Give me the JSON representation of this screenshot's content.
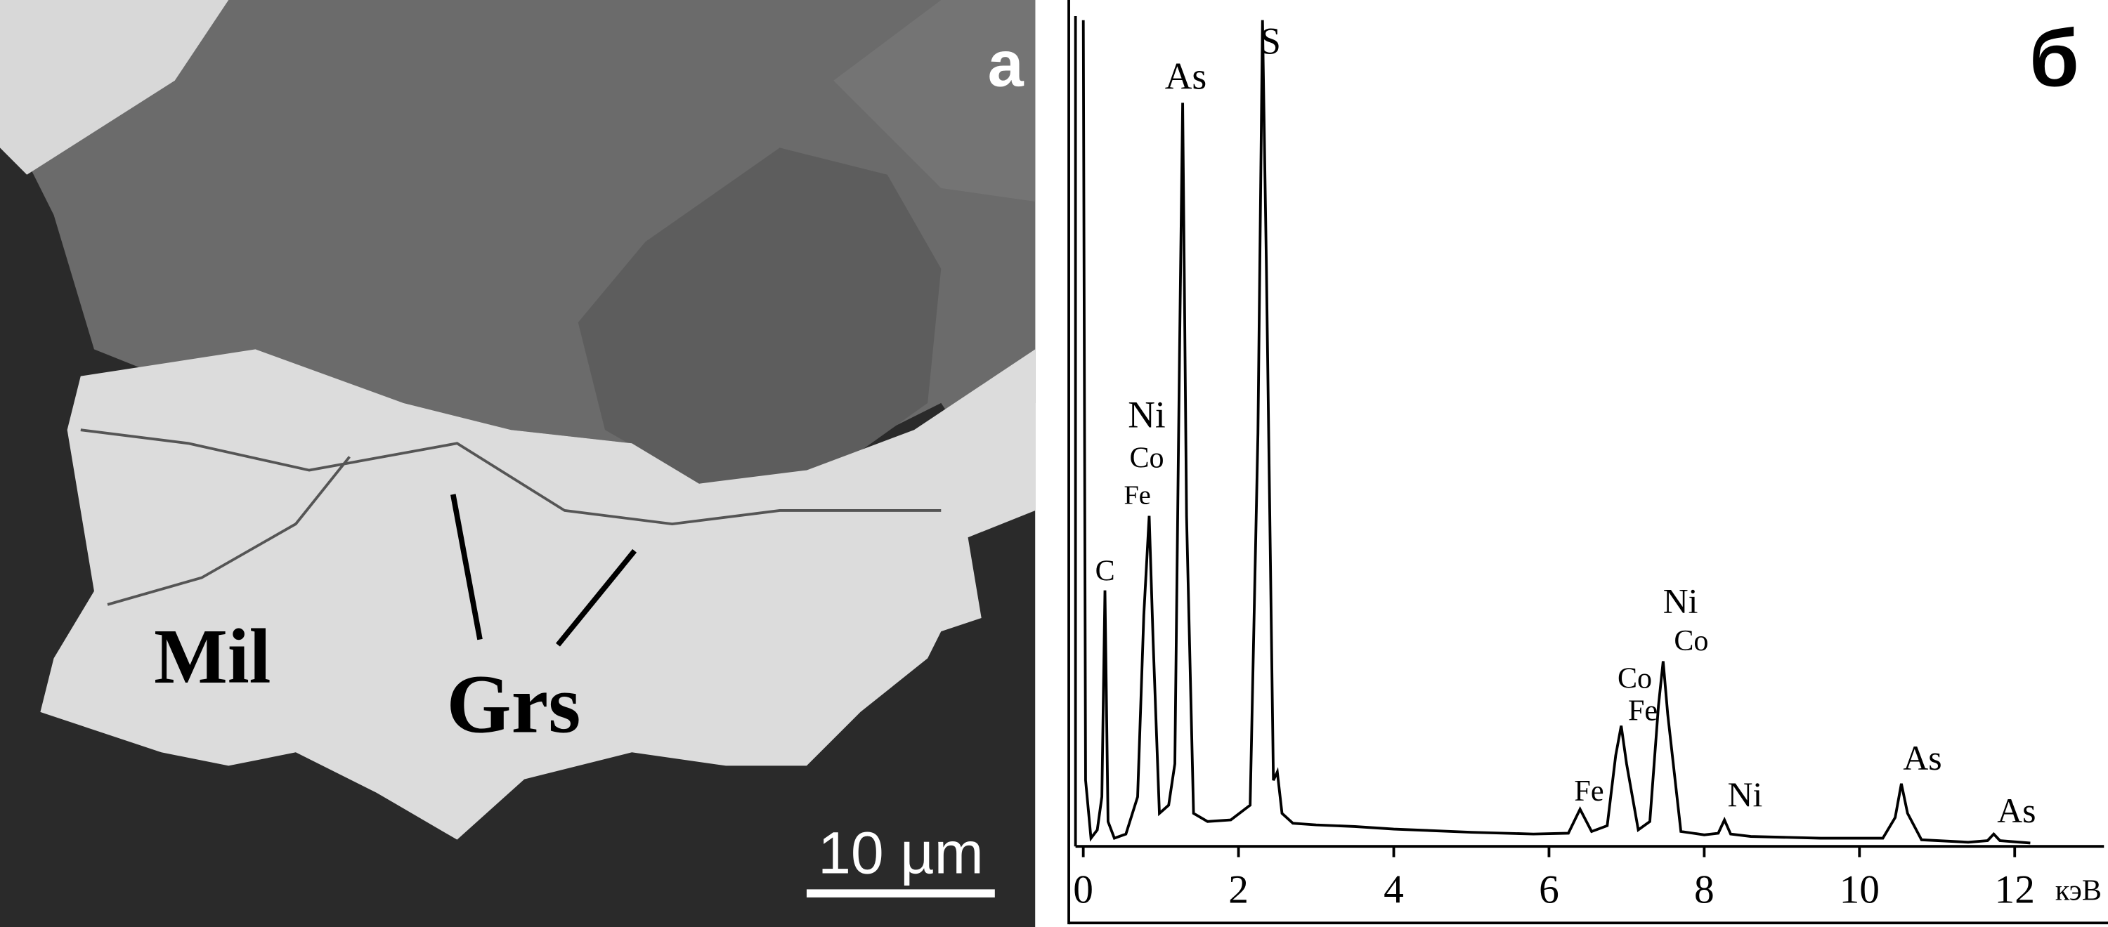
{
  "panel_a": {
    "label": "а",
    "annotations": [
      "Mil",
      "Grs"
    ],
    "scale_bar": "10 µm"
  },
  "chart_data": {
    "type": "line",
    "label": "б",
    "x_label": "кэВ",
    "color": "#000000",
    "x": [
      0,
      0.03,
      0.1,
      0.18,
      0.24,
      0.28,
      0.32,
      0.4,
      0.55,
      0.7,
      0.78,
      0.85,
      0.9,
      0.98,
      1.1,
      1.18,
      1.24,
      1.28,
      1.33,
      1.42,
      1.6,
      1.9,
      2.15,
      2.25,
      2.31,
      2.36,
      2.45,
      2.5,
      2.56,
      2.7,
      3.0,
      3.5,
      4.0,
      5.0,
      5.8,
      6.25,
      6.4,
      6.55,
      6.75,
      6.86,
      6.93,
      7.0,
      7.15,
      7.3,
      7.41,
      7.47,
      7.53,
      7.7,
      8.0,
      8.18,
      8.26,
      8.34,
      8.6,
      9.5,
      10.3,
      10.46,
      10.54,
      10.62,
      10.8,
      11.4,
      11.65,
      11.73,
      11.81,
      12.2
    ],
    "values": [
      100,
      8,
      1,
      2,
      6,
      31,
      3,
      1,
      1.5,
      6,
      28,
      40,
      25,
      4,
      5,
      10,
      60,
      90,
      40,
      4,
      3,
      3.2,
      5,
      50,
      100,
      70,
      8,
      9,
      4,
      2.8,
      2.6,
      2.4,
      2.1,
      1.7,
      1.5,
      1.6,
      4.5,
      1.8,
      2.5,
      11,
      14.6,
      10,
      2,
      3,
      17,
      22.4,
      16,
      1.8,
      1.4,
      1.6,
      3.2,
      1.5,
      1.2,
      1,
      1,
      3.5,
      7.6,
      4,
      0.8,
      0.5,
      0.7,
      1.5,
      0.7,
      0.4
    ],
    "xlim": [
      -0.1,
      13.15
    ],
    "xticks": [
      0,
      2,
      4,
      6,
      8,
      10,
      12
    ],
    "ylim": [
      0,
      100
    ],
    "peak_labels": [
      "C",
      "Ni",
      "Co",
      "Fe",
      "As",
      "S",
      "Fe",
      "Co",
      "Fe",
      "Ni",
      "Co",
      "Ni",
      "As",
      "As"
    ]
  }
}
